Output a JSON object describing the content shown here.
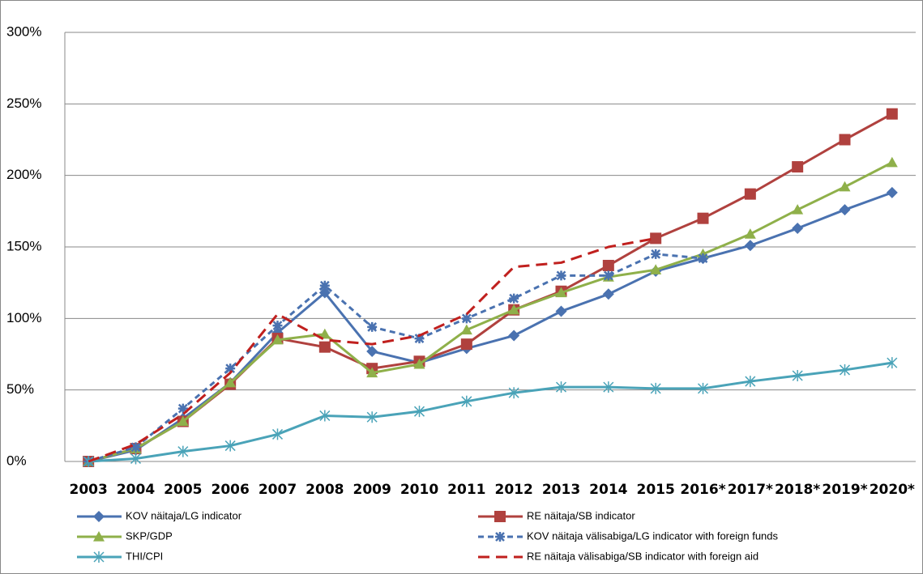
{
  "chart_data": {
    "type": "line",
    "categories": [
      "2003",
      "2004",
      "2005",
      "2006",
      "2007",
      "2008",
      "2009",
      "2010",
      "2011",
      "2012",
      "2013",
      "2014",
      "2015",
      "2016*",
      "2017*",
      "2018*",
      "2019*",
      "2020*"
    ],
    "ylim": [
      0,
      300
    ],
    "yticks": [
      {
        "value": 0,
        "label": "0%"
      },
      {
        "value": 50,
        "label": "50%"
      },
      {
        "value": 100,
        "label": "100%"
      },
      {
        "value": 150,
        "label": "150%"
      },
      {
        "value": 200,
        "label": "200%"
      },
      {
        "value": 250,
        "label": "250%"
      },
      {
        "value": 300,
        "label": "300%"
      }
    ],
    "grid": true,
    "legend": "bottom",
    "series": [
      {
        "name": "KOV näitaja/LG indicator",
        "color": "#4a72b0",
        "marker": "diamond",
        "dash": false,
        "values": [
          0,
          8,
          30,
          55,
          90,
          118,
          77,
          69,
          79,
          88,
          105,
          117,
          133,
          142,
          151,
          163,
          176,
          188
        ]
      },
      {
        "name": "RE näitaja/SB indicator",
        "color": "#b0413e",
        "marker": "square",
        "dash": false,
        "values": [
          0,
          9,
          28,
          54,
          86,
          80,
          65,
          70,
          82,
          106,
          119,
          137,
          156,
          170,
          187,
          206,
          225,
          243
        ]
      },
      {
        "name": "SKP/GDP",
        "color": "#8fb04a",
        "marker": "triangle",
        "dash": false,
        "values": [
          0,
          9,
          28,
          55,
          85,
          89,
          62,
          68,
          92,
          106,
          118,
          129,
          134,
          145,
          159,
          176,
          192,
          209
        ]
      },
      {
        "name": "KOV näitaja välisabiga/LG indicator with foreign funds",
        "color": "#4a72b0",
        "marker": "star",
        "dash": true,
        "values": [
          0,
          10,
          37,
          65,
          95,
          123,
          94,
          86,
          100,
          114,
          130,
          130,
          145,
          142,
          null,
          null,
          null,
          null
        ]
      },
      {
        "name": "THI/CPI",
        "color": "#4aa3b8",
        "marker": "asterisk",
        "dash": false,
        "values": [
          0,
          2,
          7,
          11,
          19,
          32,
          31,
          35,
          42,
          48,
          52,
          52,
          51,
          51,
          56,
          60,
          64,
          69
        ]
      },
      {
        "name": "RE näitaja välisabiga/SB indicator with foreign aid",
        "color": "#c0201e",
        "marker": "none",
        "dash": true,
        "values": [
          0,
          12,
          33,
          62,
          103,
          85,
          82,
          88,
          103,
          136,
          139,
          150,
          156,
          null,
          null,
          null,
          null,
          null
        ]
      }
    ]
  }
}
